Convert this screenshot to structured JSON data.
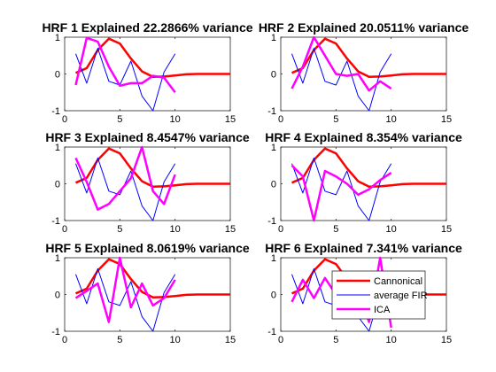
{
  "colors": {
    "cannonical": "#ff0000",
    "fir": "#0000ff",
    "ica": "#ff00ff"
  },
  "legend": {
    "placement": "inside-lower-right of HRF 6",
    "entries": [
      "Cannonical",
      "average FIR",
      "ICA"
    ]
  },
  "chart_data": [
    {
      "type": "line",
      "title": "HRF 1 Explained 22.2866% variance",
      "xlim": [
        0,
        15
      ],
      "ylim": [
        -1,
        1
      ],
      "xticks": [
        0,
        5,
        10,
        15
      ],
      "yticks": [
        -1,
        0,
        1
      ],
      "series": [
        {
          "name": "Cannonical",
          "color": "#ff0000",
          "linewidth": 2.5,
          "x": [
            1,
            2,
            3,
            4,
            5,
            6,
            7,
            8,
            9,
            10,
            11,
            12,
            13,
            14,
            15
          ],
          "y": [
            0.03,
            0.16,
            0.65,
            0.96,
            0.83,
            0.42,
            0.07,
            -0.08,
            -0.07,
            -0.04,
            -0.01,
            0,
            0,
            0,
            0
          ]
        },
        {
          "name": "average FIR",
          "color": "#0000ff",
          "linewidth": 1,
          "x": [
            1,
            2,
            3,
            4,
            5,
            6,
            7,
            8,
            9,
            10
          ],
          "y": [
            0.55,
            -0.25,
            0.7,
            -0.2,
            -0.3,
            0.35,
            -0.6,
            -1.0,
            0.05,
            0.55
          ]
        },
        {
          "name": "ICA",
          "color": "#ff00ff",
          "linewidth": 2.5,
          "x": [
            1,
            2,
            3,
            4,
            5,
            6,
            7,
            8,
            9,
            10
          ],
          "y": [
            -0.3,
            0.98,
            0.88,
            0.2,
            -0.32,
            -0.25,
            -0.25,
            -0.05,
            -0.1,
            -0.5
          ]
        }
      ]
    },
    {
      "type": "line",
      "title": "HRF 2 Explained 20.0511% variance",
      "xlim": [
        0,
        15
      ],
      "ylim": [
        -1,
        1
      ],
      "xticks": [
        0,
        5,
        10,
        15
      ],
      "yticks": [
        -1,
        0,
        1
      ],
      "series": [
        {
          "name": "Cannonical",
          "color": "#ff0000",
          "linewidth": 2.5,
          "x": [
            1,
            2,
            3,
            4,
            5,
            6,
            7,
            8,
            9,
            10,
            11,
            12,
            13,
            14,
            15
          ],
          "y": [
            0.03,
            0.16,
            0.65,
            0.96,
            0.83,
            0.42,
            0.07,
            -0.08,
            -0.07,
            -0.04,
            -0.01,
            0,
            0,
            0,
            0
          ]
        },
        {
          "name": "average FIR",
          "color": "#0000ff",
          "linewidth": 1,
          "x": [
            1,
            2,
            3,
            4,
            5,
            6,
            7,
            8,
            9,
            10
          ],
          "y": [
            0.55,
            -0.25,
            0.7,
            -0.2,
            -0.3,
            0.35,
            -0.6,
            -1.0,
            0.05,
            0.55
          ]
        },
        {
          "name": "ICA",
          "color": "#ff00ff",
          "linewidth": 2.5,
          "x": [
            1,
            2,
            3,
            4,
            5,
            6,
            7,
            8,
            9,
            10
          ],
          "y": [
            -0.4,
            0.2,
            1.0,
            0.5,
            0.0,
            -0.05,
            0.0,
            -0.45,
            -0.2,
            -0.4
          ]
        }
      ]
    },
    {
      "type": "line",
      "title": "HRF 3 Explained 8.4547% variance",
      "xlim": [
        0,
        15
      ],
      "ylim": [
        -1,
        1
      ],
      "xticks": [
        0,
        5,
        10,
        15
      ],
      "yticks": [
        -1,
        0,
        1
      ],
      "series": [
        {
          "name": "Cannonical",
          "color": "#ff0000",
          "linewidth": 2.5,
          "x": [
            1,
            2,
            3,
            4,
            5,
            6,
            7,
            8,
            9,
            10,
            11,
            12,
            13,
            14,
            15
          ],
          "y": [
            0.03,
            0.16,
            0.65,
            0.96,
            0.83,
            0.42,
            0.07,
            -0.08,
            -0.07,
            -0.04,
            -0.01,
            0,
            0,
            0,
            0
          ]
        },
        {
          "name": "average FIR",
          "color": "#0000ff",
          "linewidth": 1,
          "x": [
            1,
            2,
            3,
            4,
            5,
            6,
            7,
            8,
            9,
            10
          ],
          "y": [
            0.55,
            -0.25,
            0.7,
            -0.2,
            -0.3,
            0.35,
            -0.6,
            -1.0,
            0.05,
            0.55
          ]
        },
        {
          "name": "ICA",
          "color": "#ff00ff",
          "linewidth": 2.5,
          "x": [
            1,
            2,
            3,
            4,
            5,
            6,
            7,
            8,
            9,
            10
          ],
          "y": [
            0.7,
            0.05,
            -0.7,
            -0.55,
            -0.2,
            0.15,
            1.0,
            -0.2,
            -0.55,
            0.25
          ]
        }
      ]
    },
    {
      "type": "line",
      "title": "HRF 4 Explained 8.354% variance",
      "xlim": [
        0,
        15
      ],
      "ylim": [
        -1,
        1
      ],
      "xticks": [
        0,
        5,
        10,
        15
      ],
      "yticks": [
        -1,
        0,
        1
      ],
      "series": [
        {
          "name": "Cannonical",
          "color": "#ff0000",
          "linewidth": 2.5,
          "x": [
            1,
            2,
            3,
            4,
            5,
            6,
            7,
            8,
            9,
            10,
            11,
            12,
            13,
            14,
            15
          ],
          "y": [
            0.03,
            0.16,
            0.65,
            0.96,
            0.83,
            0.42,
            0.07,
            -0.08,
            -0.07,
            -0.04,
            -0.01,
            0,
            0,
            0,
            0
          ]
        },
        {
          "name": "average FIR",
          "color": "#0000ff",
          "linewidth": 1,
          "x": [
            1,
            2,
            3,
            4,
            5,
            6,
            7,
            8,
            9,
            10
          ],
          "y": [
            0.55,
            -0.25,
            0.7,
            -0.2,
            -0.3,
            0.35,
            -0.6,
            -1.0,
            0.05,
            0.55
          ]
        },
        {
          "name": "ICA",
          "color": "#ff00ff",
          "linewidth": 2.5,
          "x": [
            1,
            2,
            3,
            4,
            5,
            6,
            7,
            8,
            9,
            10
          ],
          "y": [
            0.5,
            0.2,
            -1.0,
            0.35,
            0.2,
            0.0,
            -0.3,
            -0.15,
            0.1,
            0.3
          ]
        }
      ]
    },
    {
      "type": "line",
      "title": "HRF 5 Explained 8.0619% variance",
      "xlim": [
        0,
        15
      ],
      "ylim": [
        -1,
        1
      ],
      "xticks": [
        0,
        5,
        10,
        15
      ],
      "yticks": [
        -1,
        0,
        1
      ],
      "series": [
        {
          "name": "Cannonical",
          "color": "#ff0000",
          "linewidth": 2.5,
          "x": [
            1,
            2,
            3,
            4,
            5,
            6,
            7,
            8,
            9,
            10,
            11,
            12,
            13,
            14,
            15
          ],
          "y": [
            0.03,
            0.16,
            0.65,
            0.96,
            0.83,
            0.42,
            0.07,
            -0.08,
            -0.07,
            -0.04,
            -0.01,
            0,
            0,
            0,
            0
          ]
        },
        {
          "name": "average FIR",
          "color": "#0000ff",
          "linewidth": 1,
          "x": [
            1,
            2,
            3,
            4,
            5,
            6,
            7,
            8,
            9,
            10
          ],
          "y": [
            0.55,
            -0.25,
            0.7,
            -0.2,
            -0.3,
            0.35,
            -0.6,
            -1.0,
            0.05,
            0.55
          ]
        },
        {
          "name": "ICA",
          "color": "#ff00ff",
          "linewidth": 2.5,
          "x": [
            1,
            2,
            3,
            4,
            5,
            6,
            7,
            8,
            9,
            10
          ],
          "y": [
            -0.1,
            0.1,
            0.3,
            -0.75,
            1.0,
            -0.35,
            0.3,
            -0.3,
            -0.1,
            0.4
          ]
        }
      ]
    },
    {
      "type": "line",
      "title": "HRF 6 Explained 7.341% variance",
      "xlim": [
        0,
        15
      ],
      "ylim": [
        -1,
        1
      ],
      "xticks": [
        0,
        5,
        10,
        15
      ],
      "yticks": [
        -1,
        0,
        1
      ],
      "series": [
        {
          "name": "Cannonical",
          "color": "#ff0000",
          "linewidth": 2.5,
          "x": [
            1,
            2,
            3,
            4,
            5,
            6,
            7,
            8,
            9,
            10,
            11,
            12,
            13,
            14,
            15
          ],
          "y": [
            0.03,
            0.16,
            0.65,
            0.96,
            0.83,
            0.42,
            0.07,
            -0.08,
            -0.07,
            -0.04,
            -0.01,
            0,
            0,
            0,
            0
          ]
        },
        {
          "name": "average FIR",
          "color": "#0000ff",
          "linewidth": 1,
          "x": [
            1,
            2,
            3,
            4,
            5,
            6,
            7,
            8,
            9,
            10
          ],
          "y": [
            0.55,
            -0.25,
            0.7,
            -0.2,
            -0.3,
            0.35,
            -0.6,
            -1.0,
            0.05,
            0.55
          ]
        },
        {
          "name": "ICA",
          "color": "#ff00ff",
          "linewidth": 2.5,
          "x": [
            1,
            2,
            3,
            4,
            5,
            6,
            7,
            8,
            9,
            10
          ],
          "y": [
            -0.2,
            0.4,
            -0.1,
            0.45,
            0.0,
            0.3,
            0.1,
            -0.75,
            1.0,
            -0.9
          ]
        }
      ]
    }
  ]
}
